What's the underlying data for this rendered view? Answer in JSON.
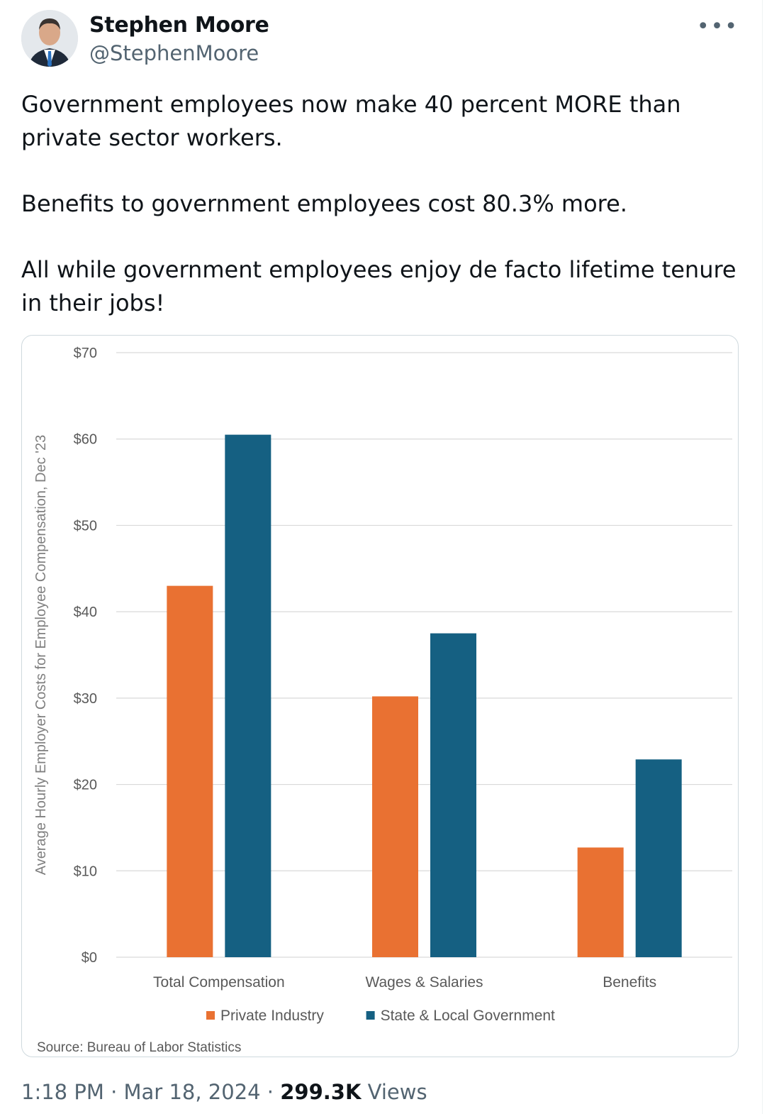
{
  "author": {
    "name": "Stephen Moore",
    "handle": "@StephenMoore"
  },
  "tweet": {
    "paragraphs": [
      "Government employees now make 40 percent MORE than private sector workers.",
      "Benefits to government employees cost 80.3% more.",
      "All while government employees enjoy de facto lifetime tenure in their jobs!"
    ]
  },
  "more_icon": "more-horizontal-icon",
  "chart_data": {
    "type": "bar",
    "categories": [
      "Total Compensation",
      "Wages & Salaries",
      "Benefits"
    ],
    "series": [
      {
        "name": "Private Industry",
        "color": "#e97132",
        "values": [
          43.0,
          30.2,
          12.7
        ]
      },
      {
        "name": "State & Local Government",
        "color": "#156082",
        "values": [
          60.5,
          37.5,
          22.9
        ]
      }
    ],
    "ylabel": "Average Hourly Employer Costs for Employee Compensation, Dec '23",
    "ylim": [
      0,
      70
    ],
    "yticks": [
      0,
      10,
      20,
      30,
      40,
      50,
      60,
      70
    ],
    "ytick_labels": [
      "$0",
      "$10",
      "$20",
      "$30",
      "$40",
      "$50",
      "$60",
      "$70"
    ],
    "grid": true,
    "legend": "bottom",
    "source": "Source: Bureau of Labor Statistics"
  },
  "footer": {
    "time": "1:18 PM",
    "sep1": " · ",
    "date": "Mar 18, 2024",
    "sep2": " · ",
    "views_count": "299.3K",
    "views_label": " Views"
  }
}
